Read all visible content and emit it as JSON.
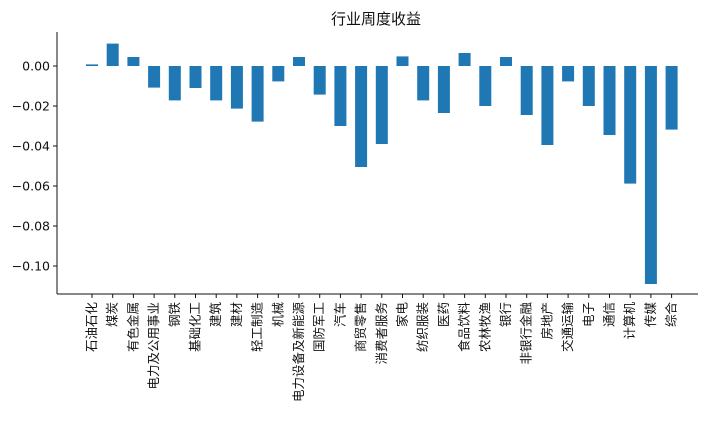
{
  "chart_data": {
    "type": "bar",
    "title": "行业周度收益",
    "xlabel": "",
    "ylabel": "",
    "ylim": [
      -0.114,
      0.017
    ],
    "yticks": [
      0.0,
      -0.02,
      -0.04,
      -0.06,
      -0.08,
      -0.1
    ],
    "ytick_labels": [
      "0.00",
      "−0.02",
      "−0.04",
      "−0.06",
      "−0.08",
      "−0.10"
    ],
    "grid": false,
    "legend": "none",
    "bar_color": "#1f77b4",
    "categories": [
      "石油石化",
      "煤炭",
      "有色金属",
      "电力及公用事业",
      "钢铁",
      "基础化工",
      "建筑",
      "建材",
      "轻工制造",
      "机械",
      "电力设备及新能源",
      "国防军工",
      "汽车",
      "商贸零售",
      "消费者服务",
      "家电",
      "纺织服装",
      "医药",
      "食品饮料",
      "农林牧渔",
      "银行",
      "非银行金融",
      "房地产",
      "交通运输",
      "电子",
      "通信",
      "计算机",
      "传媒",
      "综合"
    ],
    "values": [
      0.0008,
      0.0112,
      0.0045,
      -0.0108,
      -0.0172,
      -0.011,
      -0.0172,
      -0.0213,
      -0.0278,
      -0.0077,
      0.0045,
      -0.0143,
      -0.03,
      -0.0505,
      -0.039,
      0.0048,
      -0.0172,
      -0.0235,
      0.0065,
      -0.02,
      0.0045,
      -0.0245,
      -0.0395,
      -0.0077,
      -0.02,
      -0.0345,
      -0.0588,
      -0.109,
      -0.0318
    ]
  }
}
